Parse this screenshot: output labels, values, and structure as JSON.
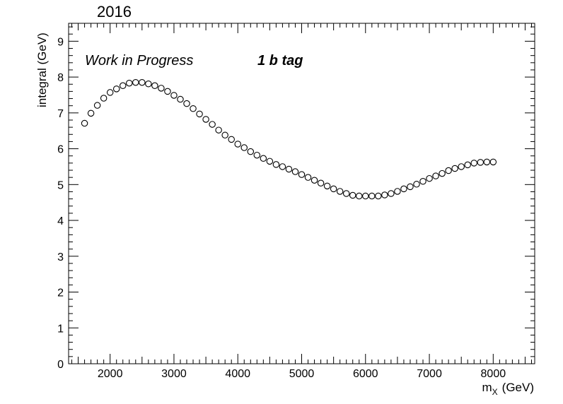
{
  "chart_data": {
    "type": "scatter",
    "title": "2016",
    "xlabel_main": "m",
    "xlabel_sub": "X",
    "xlabel_unit": "(GeV)",
    "ylabel": "integral (GeV)",
    "annotations": {
      "left": "Work in Progress",
      "right": "1 b tag"
    },
    "xlim": [
      1350,
      8650
    ],
    "ylim": [
      0,
      9.5
    ],
    "x_ticks": [
      2000,
      3000,
      4000,
      5000,
      6000,
      7000,
      8000
    ],
    "x_tick_labels": [
      "2000",
      "3000",
      "4000",
      "5000",
      "6000",
      "7000",
      "8000"
    ],
    "y_ticks": [
      0,
      1,
      2,
      3,
      4,
      5,
      6,
      7,
      8,
      9
    ],
    "y_tick_labels": [
      "0",
      "1",
      "2",
      "3",
      "4",
      "5",
      "6",
      "7",
      "8",
      "9"
    ],
    "grid": false,
    "marker": "open-circle",
    "x": [
      1600,
      1700,
      1800,
      1900,
      2000,
      2100,
      2200,
      2300,
      2400,
      2500,
      2600,
      2700,
      2800,
      2900,
      3000,
      3100,
      3200,
      3300,
      3400,
      3500,
      3600,
      3700,
      3800,
      3900,
      4000,
      4100,
      4200,
      4300,
      4400,
      4500,
      4600,
      4700,
      4800,
      4900,
      5000,
      5100,
      5200,
      5300,
      5400,
      5500,
      5600,
      5700,
      5800,
      5900,
      6000,
      6100,
      6200,
      6300,
      6400,
      6500,
      6600,
      6700,
      6800,
      6900,
      7000,
      7100,
      7200,
      7300,
      7400,
      7500,
      7600,
      7700,
      7800,
      7900,
      8000
    ],
    "y": [
      6.71,
      6.99,
      7.21,
      7.41,
      7.57,
      7.67,
      7.76,
      7.83,
      7.85,
      7.85,
      7.81,
      7.76,
      7.69,
      7.6,
      7.49,
      7.38,
      7.26,
      7.12,
      6.97,
      6.82,
      6.68,
      6.52,
      6.38,
      6.26,
      6.13,
      6.03,
      5.92,
      5.82,
      5.73,
      5.65,
      5.56,
      5.5,
      5.43,
      5.36,
      5.28,
      5.2,
      5.12,
      5.04,
      4.96,
      4.88,
      4.81,
      4.75,
      4.7,
      4.68,
      4.68,
      4.68,
      4.68,
      4.71,
      4.75,
      4.81,
      4.88,
      4.94,
      5.01,
      5.09,
      5.17,
      5.24,
      5.31,
      5.39,
      5.45,
      5.5,
      5.55,
      5.6,
      5.62,
      5.63,
      5.63
    ]
  }
}
